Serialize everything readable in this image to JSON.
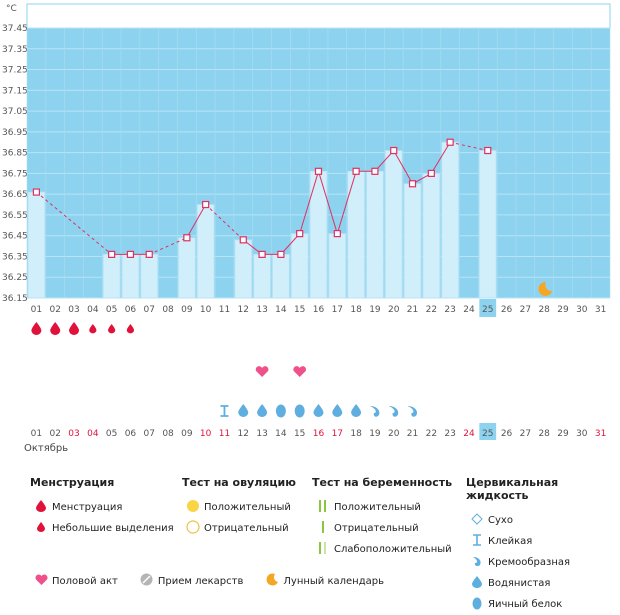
{
  "unit": "°C",
  "month": "Октябрь",
  "chart_data": {
    "type": "bar",
    "title": "",
    "xlabel": "",
    "ylabel": "°C",
    "ylim": [
      36.15,
      37.45
    ],
    "yticks": [
      "37.45",
      "37.35",
      "37.25",
      "37.15",
      "37.05",
      "36.95",
      "36.85",
      "36.75",
      "36.65",
      "36.55",
      "36.45",
      "36.35",
      "36.25",
      "36.15"
    ],
    "days": [
      "01",
      "02",
      "03",
      "04",
      "05",
      "06",
      "07",
      "08",
      "09",
      "10",
      "11",
      "12",
      "13",
      "14",
      "15",
      "16",
      "17",
      "18",
      "19",
      "20",
      "21",
      "22",
      "23",
      "24",
      "25",
      "26",
      "27",
      "28",
      "29",
      "30",
      "31"
    ],
    "weekend_days": [
      "03",
      "04",
      "10",
      "11",
      "16",
      "17",
      "24",
      "31"
    ],
    "today": "25",
    "temperatures": [
      36.66,
      null,
      null,
      null,
      36.36,
      36.36,
      36.36,
      null,
      36.44,
      36.6,
      null,
      36.43,
      36.36,
      36.36,
      36.46,
      36.76,
      36.46,
      36.76,
      36.76,
      36.86,
      36.7,
      36.75,
      36.9,
      null,
      36.86,
      null,
      null,
      null,
      null,
      null,
      null
    ],
    "menstruation": [
      "heavy",
      "heavy",
      "heavy",
      "light",
      "light",
      "light"
    ],
    "intercourse_days": [
      "13",
      "15"
    ],
    "moon_day": "28",
    "cervical_fluid": [
      {
        "day": "11",
        "type": "sticky"
      },
      {
        "day": "12",
        "type": "watery"
      },
      {
        "day": "13",
        "type": "watery"
      },
      {
        "day": "14",
        "type": "egg_white"
      },
      {
        "day": "15",
        "type": "egg_white"
      },
      {
        "day": "16",
        "type": "watery"
      },
      {
        "day": "17",
        "type": "watery"
      },
      {
        "day": "18",
        "type": "watery"
      },
      {
        "day": "19",
        "type": "creamy"
      },
      {
        "day": "20",
        "type": "creamy"
      },
      {
        "day": "21",
        "type": "creamy"
      }
    ]
  },
  "legend": {
    "menstruation": {
      "title": "Менструация",
      "items": [
        "Менструация",
        "Небольшие выделения"
      ]
    },
    "ovulation": {
      "title": "Тест на овуляцию",
      "items": [
        "Положительный",
        "Отрицательный"
      ]
    },
    "pregnancy": {
      "title": "Тест на беременность",
      "items": [
        "Положительный",
        "Отрицательный",
        "Слабоположительный"
      ]
    },
    "cervical": {
      "title": "Цервикальная жидкость",
      "items": [
        "Сухо",
        "Клейкая",
        "Кремообразная",
        "Водянистая",
        "Яичный белок"
      ]
    }
  },
  "bottom": {
    "intercourse": "Половой акт",
    "medicine": "Прием лекарств",
    "lunar": "Лунный календарь"
  },
  "colors": {
    "plot_bg": "#8dd3ef",
    "bar": "#d1eefb",
    "line": "#e03060",
    "today_bg": "#8dd3ef",
    "weekend": "#e0123c",
    "heart": "#f0508c",
    "drop": "#e0123c",
    "fluid": "#5faee0",
    "moon": "#f5a623"
  }
}
